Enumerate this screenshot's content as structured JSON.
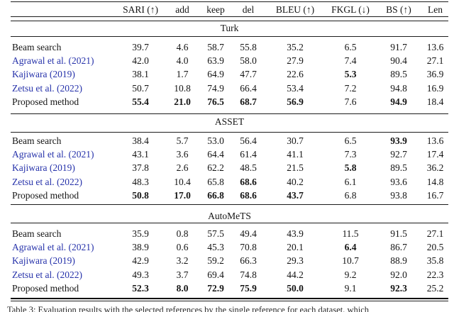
{
  "header": {
    "columns": [
      "SARI (↑)",
      "add",
      "keep",
      "del",
      "BLEU (↑)",
      "FKGL (↓)",
      "BS (↑)",
      "Len"
    ]
  },
  "sections": [
    {
      "title": "Turk",
      "rows": [
        {
          "method": "Beam search",
          "is_citation": false,
          "values": [
            "39.7",
            "4.6",
            "58.7",
            "55.8",
            "35.2",
            "6.5",
            "91.7",
            "13.6"
          ],
          "bold": []
        },
        {
          "method": "Agrawal et al. (2021)",
          "is_citation": true,
          "values": [
            "42.0",
            "4.0",
            "63.9",
            "58.0",
            "27.9",
            "7.4",
            "90.4",
            "27.1"
          ],
          "bold": []
        },
        {
          "method": "Kajiwara (2019)",
          "is_citation": true,
          "values": [
            "38.1",
            "1.7",
            "64.9",
            "47.7",
            "22.6",
            "5.3",
            "89.5",
            "36.9"
          ],
          "bold": [
            5
          ]
        },
        {
          "method": "Zetsu et al. (2022)",
          "is_citation": true,
          "values": [
            "50.7",
            "10.8",
            "74.9",
            "66.4",
            "53.4",
            "7.2",
            "94.8",
            "16.9"
          ],
          "bold": []
        },
        {
          "method": "Proposed method",
          "is_citation": false,
          "values": [
            "55.4",
            "21.0",
            "76.5",
            "68.7",
            "56.9",
            "7.6",
            "94.9",
            "18.4"
          ],
          "bold": [
            0,
            1,
            2,
            3,
            4,
            6
          ]
        }
      ]
    },
    {
      "title": "ASSET",
      "rows": [
        {
          "method": "Beam search",
          "is_citation": false,
          "values": [
            "38.4",
            "5.7",
            "53.0",
            "56.4",
            "30.7",
            "6.5",
            "93.9",
            "13.6"
          ],
          "bold": [
            6
          ]
        },
        {
          "method": "Agrawal et al. (2021)",
          "is_citation": true,
          "values": [
            "43.1",
            "3.6",
            "64.4",
            "61.4",
            "41.1",
            "7.3",
            "92.7",
            "17.4"
          ],
          "bold": []
        },
        {
          "method": "Kajiwara (2019)",
          "is_citation": true,
          "values": [
            "37.8",
            "2.6",
            "62.2",
            "48.5",
            "21.5",
            "5.8",
            "89.5",
            "36.2"
          ],
          "bold": [
            5
          ]
        },
        {
          "method": "Zetsu et al. (2022)",
          "is_citation": true,
          "values": [
            "48.3",
            "10.4",
            "65.8",
            "68.6",
            "40.2",
            "6.1",
            "93.6",
            "14.8"
          ],
          "bold": [
            3
          ]
        },
        {
          "method": "Proposed method",
          "is_citation": false,
          "values": [
            "50.8",
            "17.0",
            "66.8",
            "68.6",
            "43.7",
            "6.8",
            "93.8",
            "16.7"
          ],
          "bold": [
            0,
            1,
            2,
            3,
            4
          ]
        }
      ]
    },
    {
      "title": "AutoMeTS",
      "rows": [
        {
          "method": "Beam search",
          "is_citation": false,
          "values": [
            "35.9",
            "0.8",
            "57.5",
            "49.4",
            "43.9",
            "11.5",
            "91.5",
            "27.1"
          ],
          "bold": []
        },
        {
          "method": "Agrawal et al. (2021)",
          "is_citation": true,
          "values": [
            "38.9",
            "0.6",
            "45.3",
            "70.8",
            "20.1",
            "6.4",
            "86.7",
            "20.5"
          ],
          "bold": [
            5
          ]
        },
        {
          "method": "Kajiwara (2019)",
          "is_citation": true,
          "values": [
            "42.9",
            "3.2",
            "59.2",
            "66.3",
            "29.3",
            "10.7",
            "88.9",
            "35.8"
          ],
          "bold": []
        },
        {
          "method": "Zetsu et al. (2022)",
          "is_citation": true,
          "values": [
            "49.3",
            "3.7",
            "69.4",
            "74.8",
            "44.2",
            "9.2",
            "92.0",
            "22.3"
          ],
          "bold": []
        },
        {
          "method": "Proposed method",
          "is_citation": false,
          "values": [
            "52.3",
            "8.0",
            "72.9",
            "75.9",
            "50.0",
            "9.1",
            "92.3",
            "25.2"
          ],
          "bold": [
            0,
            1,
            2,
            3,
            4,
            6
          ]
        }
      ]
    }
  ],
  "caption": "Table 3: Evaluation results with the selected references by the single reference for each dataset, which",
  "colors": {
    "citation_link": "#2632aa",
    "rule": "#1c1c1c",
    "text": "#141414"
  }
}
